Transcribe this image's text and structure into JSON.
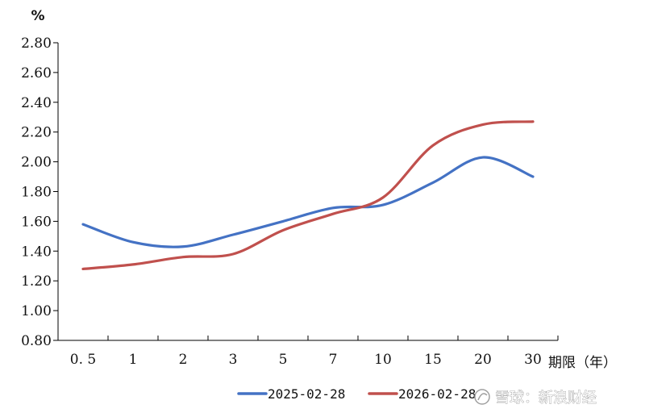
{
  "chart_data": {
    "type": "line",
    "title": "",
    "y_unit": "%",
    "xlabel": "期限（年）",
    "ylabel": "",
    "categories": [
      "0.5",
      "1",
      "2",
      "3",
      "5",
      "7",
      "10",
      "15",
      "20",
      "30"
    ],
    "y_tick_labels": [
      "0.80",
      "1.00",
      "1.20",
      "1.40",
      "1.60",
      "1.80",
      "2.00",
      "2.20",
      "2.40",
      "2.60",
      "2.80"
    ],
    "ylim": [
      0.8,
      2.8
    ],
    "grid": false,
    "legend_position": "bottom",
    "series": [
      {
        "name": "2025-02-28",
        "color": "#4472C4",
        "values": [
          1.58,
          1.46,
          1.43,
          1.51,
          1.6,
          1.69,
          1.71,
          1.86,
          2.03,
          1.9
        ]
      },
      {
        "name": "2026-02-28",
        "color": "#C0504D",
        "values": [
          1.28,
          1.31,
          1.36,
          1.38,
          1.54,
          1.65,
          1.76,
          2.11,
          2.25,
          2.27
        ]
      }
    ]
  },
  "watermark": {
    "text": "雪球：新浪财经"
  }
}
